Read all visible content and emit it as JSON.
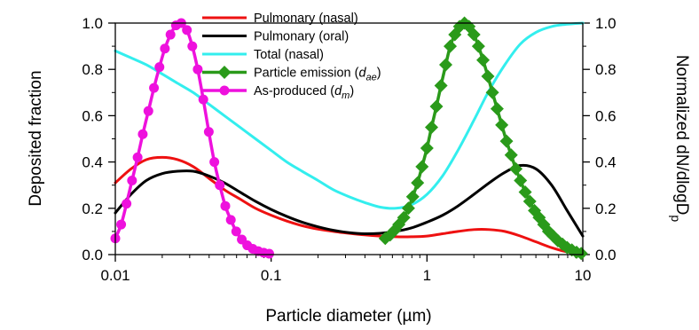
{
  "chart_data": {
    "type": "line",
    "x_scale": "log",
    "xlim": [
      0.01,
      10
    ],
    "ylim_left": [
      0,
      1.0
    ],
    "ylim_right": [
      0,
      1.0
    ],
    "xlabel": "Particle diameter (µm)",
    "ylabel_left": "Deposited fraction",
    "ylabel_right": {
      "main": "Normalized dN/dlogD",
      "sub": "p"
    },
    "x_ticks": [
      {
        "value": 0.01,
        "label": "0.01"
      },
      {
        "value": 0.1,
        "label": "0.1"
      },
      {
        "value": 1,
        "label": "1"
      },
      {
        "value": 10,
        "label": "10"
      }
    ],
    "y_ticks_left": [
      {
        "value": 0.0,
        "label": "0.0"
      },
      {
        "value": 0.2,
        "label": "0.2"
      },
      {
        "value": 0.4,
        "label": "0.4"
      },
      {
        "value": 0.6,
        "label": "0.6"
      },
      {
        "value": 0.8,
        "label": "0.8"
      },
      {
        "value": 1.0,
        "label": "1.0"
      }
    ],
    "y_ticks_right": [
      {
        "value": 0.0,
        "label": "0.0"
      },
      {
        "value": 0.2,
        "label": "0.2"
      },
      {
        "value": 0.4,
        "label": "0.4"
      },
      {
        "value": 0.6,
        "label": "0.6"
      },
      {
        "value": 0.8,
        "label": "0.8"
      },
      {
        "value": 1.0,
        "label": "1.0"
      }
    ],
    "legend_position": "top-center",
    "series": [
      {
        "name": "Pulmonary (nasal)",
        "name_parts": [
          {
            "text": "Pulmonary (nasal)",
            "style": "normal"
          }
        ],
        "axis": "left",
        "color": "#ee1111",
        "marker": "none",
        "x": [
          0.01,
          0.0126,
          0.0158,
          0.02,
          0.0251,
          0.0316,
          0.0398,
          0.0501,
          0.0631,
          0.0794,
          0.1,
          0.126,
          0.158,
          0.2,
          0.251,
          0.316,
          0.398,
          0.501,
          0.631,
          0.794,
          1.0,
          1.26,
          1.58,
          2.0,
          2.51,
          3.16,
          3.98,
          5.01,
          6.31,
          7.94,
          10
        ],
        "y": [
          0.31,
          0.37,
          0.41,
          0.42,
          0.41,
          0.38,
          0.33,
          0.28,
          0.24,
          0.2,
          0.17,
          0.145,
          0.125,
          0.11,
          0.1,
          0.092,
          0.085,
          0.08,
          0.077,
          0.077,
          0.08,
          0.09,
          0.1,
          0.108,
          0.108,
          0.1,
          0.08,
          0.055,
          0.03,
          0.012,
          0.005
        ]
      },
      {
        "name": "Pulmonary (oral)",
        "name_parts": [
          {
            "text": "Pulmonary (oral)",
            "style": "normal"
          }
        ],
        "axis": "left",
        "color": "#000000",
        "marker": "none",
        "x": [
          0.01,
          0.0126,
          0.0158,
          0.02,
          0.0251,
          0.0316,
          0.0398,
          0.0501,
          0.0631,
          0.0794,
          0.1,
          0.126,
          0.158,
          0.2,
          0.251,
          0.316,
          0.398,
          0.501,
          0.631,
          0.794,
          1.0,
          1.26,
          1.58,
          2.0,
          2.51,
          3.16,
          3.98,
          5.01,
          6.31,
          7.94,
          10
        ],
        "y": [
          0.18,
          0.26,
          0.32,
          0.35,
          0.36,
          0.36,
          0.34,
          0.31,
          0.27,
          0.23,
          0.195,
          0.165,
          0.14,
          0.12,
          0.105,
          0.095,
          0.09,
          0.092,
          0.1,
          0.115,
          0.14,
          0.17,
          0.21,
          0.26,
          0.31,
          0.355,
          0.385,
          0.37,
          0.3,
          0.19,
          0.08
        ]
      },
      {
        "name": "Total (nasal)",
        "name_parts": [
          {
            "text": "Total (nasal)",
            "style": "normal"
          }
        ],
        "axis": "left",
        "color": "#33eeee",
        "marker": "none",
        "x": [
          0.01,
          0.0126,
          0.0158,
          0.02,
          0.0251,
          0.0316,
          0.0398,
          0.0501,
          0.0631,
          0.0794,
          0.1,
          0.126,
          0.158,
          0.2,
          0.251,
          0.316,
          0.398,
          0.501,
          0.631,
          0.794,
          1.0,
          1.26,
          1.58,
          2.0,
          2.51,
          3.16,
          3.98,
          5.01,
          6.31,
          7.94,
          10
        ],
        "y": [
          0.88,
          0.85,
          0.82,
          0.78,
          0.74,
          0.7,
          0.65,
          0.6,
          0.55,
          0.5,
          0.45,
          0.4,
          0.36,
          0.32,
          0.28,
          0.25,
          0.225,
          0.205,
          0.2,
          0.215,
          0.26,
          0.34,
          0.45,
          0.58,
          0.71,
          0.82,
          0.91,
          0.96,
          0.985,
          0.995,
          1.0
        ]
      },
      {
        "name": "Particle emission (dae)",
        "name_parts": [
          {
            "text": "Particle emission (",
            "style": "normal"
          },
          {
            "text": "d",
            "style": "italic"
          },
          {
            "text": "ae",
            "style": "italic-sub"
          },
          {
            "text": ")",
            "style": "normal"
          }
        ],
        "axis": "right",
        "color": "#2a9a1a",
        "marker": "diamond",
        "x": [
          0.54,
          0.58,
          0.62,
          0.66,
          0.71,
          0.76,
          0.81,
          0.87,
          0.93,
          1.0,
          1.07,
          1.15,
          1.23,
          1.32,
          1.41,
          1.51,
          1.62,
          1.74,
          1.86,
          2.0,
          2.14,
          2.29,
          2.46,
          2.63,
          2.82,
          3.02,
          3.24,
          3.47,
          3.72,
          3.98,
          4.27,
          4.57,
          4.9,
          5.25,
          5.62,
          6.03,
          6.46,
          6.92,
          7.41,
          7.94,
          8.51,
          9.12,
          9.77
        ],
        "y": [
          0.07,
          0.085,
          0.105,
          0.13,
          0.16,
          0.2,
          0.25,
          0.31,
          0.38,
          0.46,
          0.55,
          0.64,
          0.73,
          0.82,
          0.9,
          0.95,
          0.985,
          1.0,
          0.985,
          0.95,
          0.9,
          0.84,
          0.77,
          0.7,
          0.63,
          0.56,
          0.49,
          0.43,
          0.37,
          0.32,
          0.27,
          0.23,
          0.19,
          0.16,
          0.13,
          0.1,
          0.08,
          0.06,
          0.045,
          0.03,
          0.02,
          0.01,
          0.005
        ]
      },
      {
        "name": "As-produced (dm)",
        "name_parts": [
          {
            "text": "As-produced (",
            "style": "normal"
          },
          {
            "text": "d",
            "style": "italic"
          },
          {
            "text": "m",
            "style": "italic-sub"
          },
          {
            "text": ")",
            "style": "normal"
          }
        ],
        "axis": "right",
        "color": "#ee11dd",
        "marker": "circle",
        "x": [
          0.01,
          0.0109,
          0.0118,
          0.0128,
          0.0139,
          0.015,
          0.0163,
          0.0177,
          0.0192,
          0.0208,
          0.0226,
          0.0245,
          0.0265,
          0.0288,
          0.0312,
          0.0338,
          0.0367,
          0.0398,
          0.0432,
          0.0468,
          0.0508,
          0.0551,
          0.0597,
          0.0648,
          0.0702,
          0.0762,
          0.0826,
          0.0896,
          0.0972
        ],
        "y": [
          0.07,
          0.13,
          0.22,
          0.32,
          0.42,
          0.52,
          0.62,
          0.72,
          0.81,
          0.89,
          0.95,
          0.99,
          1.0,
          0.97,
          0.9,
          0.8,
          0.67,
          0.53,
          0.4,
          0.3,
          0.21,
          0.15,
          0.1,
          0.065,
          0.04,
          0.025,
          0.015,
          0.008,
          0.004
        ]
      }
    ]
  }
}
